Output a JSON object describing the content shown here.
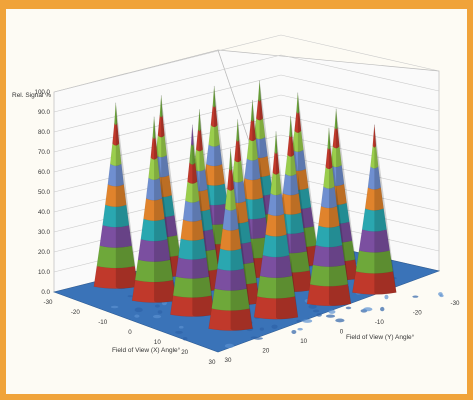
{
  "accent_color": "#f0a33a",
  "chart_data": {
    "type": "surface",
    "title": "",
    "zlabel": "Rel. Signal %",
    "xlabel": "Field of View (X) Angle°",
    "ylabel": "Field of View (Y) Angle°",
    "zlim": [
      0,
      100
    ],
    "z_ticks": [
      "100.0",
      "90.0",
      "80.0",
      "70.0",
      "60.0",
      "50.0",
      "40.0",
      "30.0",
      "20.0",
      "10.0",
      "0.0"
    ],
    "x_ticks": [
      "-30",
      "-20",
      "-10",
      "0",
      "10",
      "20",
      "30"
    ],
    "y_ticks": [
      "30",
      "20",
      "10",
      "0",
      "-10",
      "-20",
      "-30"
    ],
    "xlim": [
      -30,
      30
    ],
    "ylim": [
      -30,
      30
    ],
    "grid": true,
    "floor_color": "#3a73b8",
    "band_colors": [
      "#c0392b",
      "#6ea83a",
      "#7b4fa0",
      "#2aa7b0",
      "#e0832c",
      "#6f8fd0",
      "#9acd4c"
    ],
    "peaks": [
      {
        "x": -24,
        "y": -20,
        "z": 85
      },
      {
        "x": -24,
        "y": -8,
        "z": 88
      },
      {
        "x": -24,
        "y": 6,
        "z": 90
      },
      {
        "x": -24,
        "y": 18,
        "z": 92
      },
      {
        "x": -10,
        "y": -20,
        "z": 86
      },
      {
        "x": -10,
        "y": -8,
        "z": 88
      },
      {
        "x": -10,
        "y": 6,
        "z": 90
      },
      {
        "x": -10,
        "y": 18,
        "z": 92
      },
      {
        "x": 4,
        "y": -20,
        "z": 85
      },
      {
        "x": 4,
        "y": -8,
        "z": 87
      },
      {
        "x": 4,
        "y": 6,
        "z": 92
      },
      {
        "x": 4,
        "y": 18,
        "z": 95
      },
      {
        "x": 18,
        "y": -20,
        "z": 84
      },
      {
        "x": 18,
        "y": -8,
        "z": 88
      },
      {
        "x": 18,
        "y": 6,
        "z": 93
      },
      {
        "x": 18,
        "y": 18,
        "z": 90
      }
    ]
  }
}
